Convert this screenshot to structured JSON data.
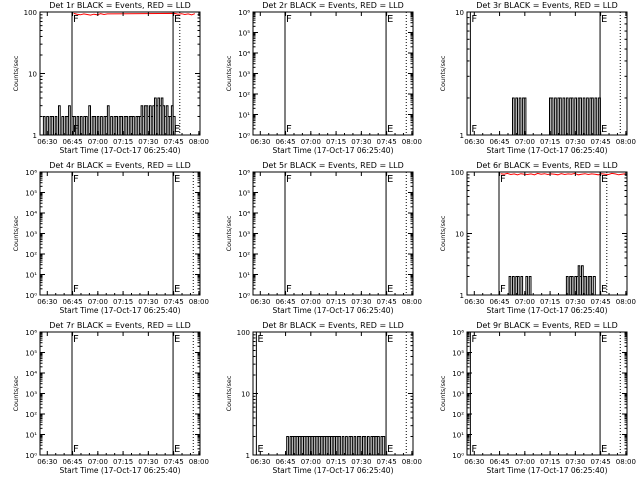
{
  "figure": {
    "colors": {
      "events": "#000000",
      "lld": "#ff0000",
      "background": "#ffffff"
    }
  },
  "chart_data": [
    {
      "type": "line",
      "title": "Det 1r BLACK = Events, RED = LLD",
      "xlabel": "Start Time (17-Oct-17 06:25:40)",
      "ylabel": "Counts/sec",
      "x_ticks": [
        "06:30",
        "06:45",
        "07:00",
        "07:15",
        "07:30",
        "07:45",
        "08:00"
      ],
      "x_range_min": [
        0,
        95
      ],
      "y_scale": "log",
      "ylim": [
        1,
        100
      ],
      "y_ticks": [
        "1",
        "10",
        "100"
      ],
      "markers": [
        {
          "label": "F",
          "t": 19
        },
        {
          "label": "E",
          "t": 79
        }
      ],
      "dotted_lines": [
        83
      ],
      "series": [
        {
          "name": "Events",
          "color": "#000000",
          "x": [
            2,
            3,
            4,
            5,
            6,
            7,
            8,
            9,
            10,
            11,
            12,
            13,
            14,
            15,
            16,
            17,
            18,
            19,
            20,
            21,
            22,
            23,
            24,
            25,
            26,
            27,
            28,
            29,
            30,
            31,
            32,
            33,
            34,
            35,
            36,
            37,
            38,
            39,
            40,
            41,
            42,
            43,
            44,
            45,
            46,
            47,
            48,
            49,
            50,
            51,
            52,
            53,
            54,
            55,
            56,
            57,
            58,
            59,
            60,
            61,
            62,
            63,
            64,
            65,
            66,
            67,
            68,
            69,
            70,
            71,
            72,
            73,
            74,
            75,
            76,
            77,
            78,
            79
          ],
          "y": [
            2,
            1,
            2,
            1,
            2,
            2,
            1,
            2,
            1,
            3,
            1,
            2,
            1,
            2,
            2,
            3,
            1,
            2,
            2,
            1,
            2,
            1,
            2,
            1,
            2,
            2,
            1,
            3,
            1,
            2,
            2,
            1,
            2,
            1,
            2,
            1,
            2,
            2,
            3,
            1,
            2,
            1,
            2,
            2,
            1,
            2,
            2,
            1,
            2,
            2,
            1,
            2,
            2,
            2,
            1,
            2,
            2,
            2,
            3,
            2,
            3,
            3,
            2,
            3,
            2,
            3,
            4,
            3,
            4,
            3,
            4,
            3,
            2,
            3,
            2,
            2,
            3,
            2
          ]
        },
        {
          "name": "LLD",
          "color": "#ff0000",
          "x": [
            20,
            22,
            24,
            26,
            28,
            30,
            32,
            34,
            36,
            38,
            40,
            80,
            82,
            84,
            86,
            88,
            90,
            92
          ],
          "y": [
            95,
            92,
            90,
            93,
            91,
            89,
            92,
            90,
            94,
            91,
            93,
            95,
            92,
            94,
            91,
            93,
            90,
            94
          ]
        }
      ]
    },
    {
      "type": "line",
      "title": "Det 2r BLACK = Events, RED = LLD",
      "xlabel": "Start Time (17-Oct-17 06:25:40)",
      "ylabel": "Counts/sec",
      "x_ticks": [
        "06:30",
        "06:45",
        "07:00",
        "07:15",
        "07:30",
        "07:45",
        "08:00"
      ],
      "x_range_min": [
        0,
        95
      ],
      "y_scale": "log",
      "ylim": [
        1,
        1000000
      ],
      "y_ticks": [
        "10⁰",
        "10¹",
        "10²",
        "10³",
        "10⁴",
        "10⁵",
        "10⁶"
      ],
      "markers": [
        {
          "label": "F",
          "t": 19
        },
        {
          "label": "E",
          "t": 79
        }
      ],
      "dotted_lines": [
        91
      ],
      "series": []
    },
    {
      "type": "line",
      "title": "Det 3r BLACK = Events, RED = LLD",
      "xlabel": "Start Time (17-Oct-17 06:25:40)",
      "ylabel": "Counts/sec",
      "x_ticks": [
        "06:30",
        "06:45",
        "07:00",
        "07:15",
        "07:30",
        "07:45",
        "08:00"
      ],
      "x_range_min": [
        0,
        95
      ],
      "y_scale": "log",
      "ylim": [
        1,
        10
      ],
      "y_ticks": [
        "1",
        "10"
      ],
      "markers": [
        {
          "label": "F",
          "t": 2
        },
        {
          "label": "E",
          "t": 79
        }
      ],
      "dotted_lines": [
        91
      ],
      "series": [
        {
          "name": "Events",
          "color": "#000000",
          "x": [
            26,
            27,
            28,
            29,
            30,
            31,
            32,
            33,
            34,
            35,
            48,
            49,
            50,
            51,
            52,
            53,
            54,
            55,
            56,
            57,
            58,
            59,
            60,
            61,
            62,
            63,
            64,
            65,
            66,
            67,
            68,
            69,
            70,
            71,
            72,
            73,
            74,
            75,
            76,
            77,
            78
          ],
          "y": [
            1,
            2,
            1,
            2,
            1,
            2,
            1,
            2,
            2,
            1,
            1,
            2,
            2,
            1,
            2,
            1,
            2,
            2,
            1,
            2,
            1,
            2,
            1,
            2,
            2,
            1,
            2,
            1,
            2,
            2,
            1,
            2,
            1,
            2,
            1,
            2,
            2,
            1,
            2,
            1,
            2
          ]
        }
      ]
    },
    {
      "type": "line",
      "title": "Det 4r BLACK = Events, RED = LLD",
      "xlabel": "Start Time (17-Oct-17 06:25:40)",
      "ylabel": "Counts/sec",
      "x_ticks": [
        "06:30",
        "06:45",
        "07:00",
        "07:15",
        "07:30",
        "07:45",
        "08:00"
      ],
      "x_range_min": [
        0,
        95
      ],
      "y_scale": "log",
      "ylim": [
        1,
        1000000
      ],
      "y_ticks": [
        "10⁰",
        "10¹",
        "10²",
        "10³",
        "10⁴",
        "10⁵",
        "10⁶"
      ],
      "markers": [
        {
          "label": "F",
          "t": 19
        },
        {
          "label": "E",
          "t": 79
        }
      ],
      "dotted_lines": [
        91
      ],
      "series": []
    },
    {
      "type": "line",
      "title": "Det 5r BLACK = Events, RED = LLD",
      "xlabel": "Start Time (17-Oct-17 06:25:40)",
      "ylabel": "Counts/sec",
      "x_ticks": [
        "06:30",
        "06:45",
        "07:00",
        "07:15",
        "07:30",
        "07:45",
        "08:00"
      ],
      "x_range_min": [
        0,
        95
      ],
      "y_scale": "log",
      "ylim": [
        1,
        1000000
      ],
      "y_ticks": [
        "10⁰",
        "10¹",
        "10²",
        "10³",
        "10⁴",
        "10⁵",
        "10⁶"
      ],
      "markers": [
        {
          "label": "F",
          "t": 19
        },
        {
          "label": "E",
          "t": 79
        }
      ],
      "dotted_lines": [
        91
      ],
      "series": []
    },
    {
      "type": "line",
      "title": "Det 6r BLACK = Events, RED = LLD",
      "xlabel": "Start Time (17-Oct-17 06:25:40)",
      "ylabel": "Counts/sec",
      "x_ticks": [
        "06:30",
        "06:45",
        "07:00",
        "07:15",
        "07:30",
        "07:45",
        "08:00"
      ],
      "x_range_min": [
        0,
        95
      ],
      "y_scale": "log",
      "ylim": [
        1,
        100
      ],
      "y_ticks": [
        "1",
        "10",
        "100"
      ],
      "markers": [
        {
          "label": "F",
          "t": 19
        },
        {
          "label": "E",
          "t": 79
        }
      ],
      "dotted_lines": [
        83
      ],
      "series": [
        {
          "name": "Events",
          "color": "#000000",
          "x": [
            24,
            25,
            26,
            27,
            28,
            29,
            30,
            31,
            32,
            33,
            34,
            35,
            36,
            37,
            38,
            58,
            59,
            60,
            61,
            62,
            63,
            64,
            65,
            66,
            67,
            68,
            69,
            70,
            71,
            72,
            73,
            74,
            75
          ],
          "y": [
            1,
            2,
            1,
            2,
            1,
            2,
            2,
            1,
            2,
            1,
            1,
            2,
            1,
            2,
            1,
            1,
            2,
            1,
            2,
            2,
            1,
            2,
            2,
            3,
            2,
            3,
            2,
            2,
            1,
            2,
            2,
            1,
            2
          ]
        },
        {
          "name": "LLD",
          "color": "#ff0000",
          "x": [
            20,
            22,
            24,
            26,
            28,
            30,
            32,
            34,
            36,
            38,
            40,
            42,
            44,
            46,
            48,
            50,
            52,
            54,
            56,
            58,
            60,
            62,
            64,
            66,
            68,
            70,
            72,
            74,
            76,
            78,
            80,
            82,
            84,
            86,
            88,
            90,
            92,
            94
          ],
          "y": [
            94,
            92,
            95,
            91,
            93,
            90,
            94,
            92,
            91,
            93,
            90,
            95,
            92,
            94,
            91,
            93,
            92,
            90,
            94,
            91,
            93,
            92,
            95,
            90,
            92,
            94,
            91,
            93,
            92,
            90,
            94,
            92,
            91,
            95,
            93,
            90,
            92,
            94
          ]
        }
      ]
    },
    {
      "type": "line",
      "title": "Det 7r BLACK = Events, RED = LLD",
      "xlabel": "Start Time (17-Oct-17 06:25:40)",
      "ylabel": "Counts/sec",
      "x_ticks": [
        "06:30",
        "06:45",
        "07:00",
        "07:15",
        "07:30",
        "07:45",
        "08:00"
      ],
      "x_range_min": [
        0,
        95
      ],
      "y_scale": "log",
      "ylim": [
        1,
        1000000
      ],
      "y_ticks": [
        "10⁰",
        "10¹",
        "10²",
        "10³",
        "10⁴",
        "10⁵",
        "10⁶"
      ],
      "markers": [
        {
          "label": "F",
          "t": 19
        },
        {
          "label": "E",
          "t": 79
        }
      ],
      "dotted_lines": [
        91
      ],
      "series": []
    },
    {
      "type": "line",
      "title": "Det 8r BLACK = Events, RED = LLD",
      "xlabel": "Start Time (17-Oct-17 06:25:40)",
      "ylabel": "Counts/sec",
      "x_ticks": [
        "06:30",
        "06:45",
        "07:00",
        "07:15",
        "07:30",
        "07:45",
        "08:00"
      ],
      "x_range_min": [
        0,
        95
      ],
      "y_scale": "log",
      "ylim": [
        1,
        100
      ],
      "y_ticks": [
        "1",
        "10",
        "100"
      ],
      "markers": [
        {
          "label": "E",
          "t": 2
        },
        {
          "label": "E",
          "t": 79
        }
      ],
      "dotted_lines": [
        91
      ],
      "series": [
        {
          "name": "Events",
          "color": "#000000",
          "x": [
            19,
            20,
            21,
            22,
            23,
            24,
            25,
            26,
            27,
            28,
            29,
            30,
            31,
            32,
            33,
            34,
            35,
            36,
            37,
            38,
            39,
            40,
            41,
            42,
            43,
            44,
            45,
            46,
            47,
            48,
            49,
            50,
            51,
            52,
            53,
            54,
            55,
            56,
            57,
            58,
            59,
            60,
            61,
            62,
            63,
            64,
            65,
            66,
            67,
            68,
            69,
            70,
            71,
            72,
            73,
            74,
            75,
            76,
            77
          ],
          "y": [
            1,
            2,
            1,
            2,
            2,
            2,
            2,
            2,
            2,
            2,
            2,
            2,
            2,
            2,
            2,
            2,
            2,
            2,
            2,
            2,
            2,
            2,
            2,
            2,
            2,
            2,
            2,
            2,
            2,
            2,
            2,
            2,
            2,
            1,
            2,
            1,
            2,
            1,
            2,
            2,
            1,
            2,
            1,
            2,
            2,
            1,
            2,
            2,
            1,
            2,
            1,
            2,
            2,
            2,
            2,
            2,
            1,
            2,
            2
          ]
        }
      ]
    },
    {
      "type": "line",
      "title": "Det 9r BLACK = Events, RED = LLD",
      "xlabel": "Start Time (17-Oct-17 06:25:40)",
      "ylabel": "Counts/sec",
      "x_ticks": [
        "06:30",
        "06:45",
        "07:00",
        "07:15",
        "07:30",
        "07:45",
        "08:00"
      ],
      "x_range_min": [
        0,
        95
      ],
      "y_scale": "log",
      "ylim": [
        1,
        1000000
      ],
      "y_ticks": [
        "10⁰",
        "10¹",
        "10²",
        "10³",
        "10⁴",
        "10⁵",
        "10⁶"
      ],
      "markers": [
        {
          "label": "F",
          "t": 2
        },
        {
          "label": "E",
          "t": 79
        }
      ],
      "dotted_lines": [
        91
      ],
      "series": []
    }
  ]
}
